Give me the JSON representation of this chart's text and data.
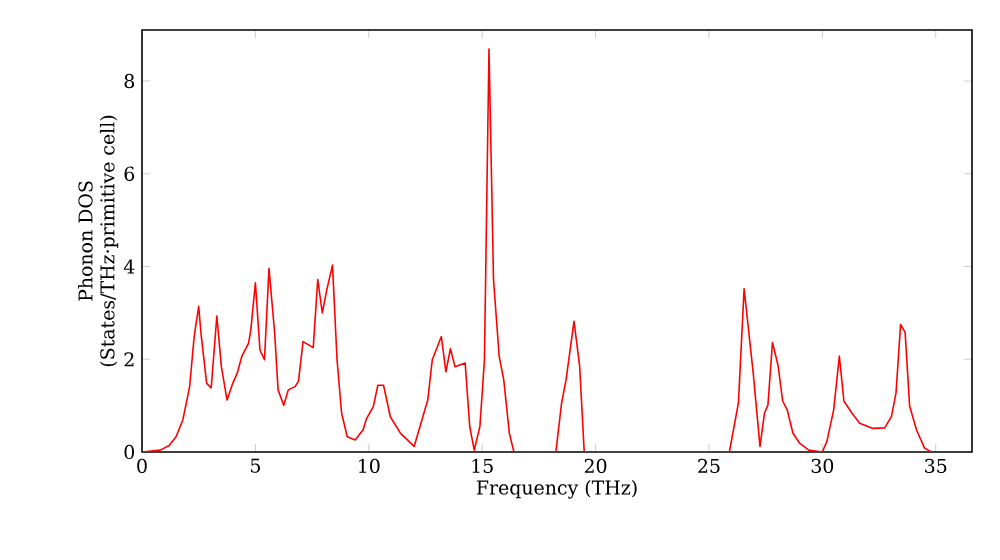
{
  "chart_data": {
    "type": "line",
    "xlabel": "Frequency (THz)",
    "ylabel": "Phonon DOS\n(States/THz·primitive cell)",
    "xlim": [
      0,
      36.6
    ],
    "ylim": [
      0,
      9.1
    ],
    "xticks": [
      0,
      5,
      10,
      15,
      20,
      25,
      30,
      35
    ],
    "yticks": [
      0,
      2,
      4,
      6,
      8
    ],
    "grid": false,
    "series": [
      {
        "color": "#ff0000",
        "x": [
          0,
          0.8,
          1.2,
          1.5,
          1.8,
          2.1,
          2.3,
          2.5,
          2.6,
          2.85,
          3.05,
          3.3,
          3.5,
          3.75,
          4.0,
          4.2,
          4.4,
          4.7,
          4.8,
          5.0,
          5.2,
          5.4,
          5.6,
          5.85,
          6.0,
          6.25,
          6.45,
          6.75,
          6.9,
          7.1,
          7.55,
          7.75,
          7.95,
          8.15,
          8.4,
          8.6,
          8.8,
          9.05,
          9.4,
          9.75,
          9.9,
          10.2,
          10.4,
          10.65,
          10.95,
          11.4,
          12.0,
          12.6,
          12.8,
          13.2,
          13.4,
          13.6,
          13.8,
          14.25,
          14.45,
          14.65,
          14.9,
          15.1,
          15.3,
          15.5,
          15.75,
          15.95,
          16.2,
          16.4,
          18.25,
          18.5,
          18.7,
          19.05,
          19.3,
          19.5,
          25.9,
          26.3,
          26.55,
          26.95,
          27.25,
          27.45,
          27.6,
          27.8,
          28.05,
          28.25,
          28.45,
          28.7,
          29.0,
          29.4,
          30.0,
          30.2,
          30.5,
          30.75,
          30.95,
          31.3,
          31.65,
          32.2,
          32.75,
          33.05,
          33.25,
          33.45,
          33.65,
          33.85,
          34.15,
          34.5,
          34.8
        ],
        "values": [
          0,
          0.04,
          0.14,
          0.33,
          0.69,
          1.41,
          2.49,
          3.14,
          2.56,
          1.48,
          1.38,
          2.93,
          1.84,
          1.12,
          1.48,
          1.7,
          2.06,
          2.35,
          2.64,
          3.65,
          2.2,
          1.99,
          3.96,
          2.56,
          1.34,
          1.01,
          1.34,
          1.41,
          1.53,
          2.38,
          2.25,
          3.72,
          3.0,
          3.5,
          4.03,
          1.99,
          0.84,
          0.33,
          0.26,
          0.48,
          0.72,
          0.98,
          1.44,
          1.44,
          0.76,
          0.4,
          0.12,
          1.12,
          1.99,
          2.49,
          1.73,
          2.23,
          1.84,
          1.92,
          0.55,
          0.04,
          0.55,
          1.99,
          8.69,
          3.72,
          2.06,
          1.56,
          0.4,
          0,
          0,
          1.05,
          1.56,
          2.82,
          1.84,
          0,
          0,
          1.06,
          3.52,
          1.71,
          0.12,
          0.84,
          1.01,
          2.36,
          1.86,
          1.1,
          0.91,
          0.41,
          0.19,
          0.04,
          0,
          0.23,
          0.91,
          2.07,
          1.1,
          0.84,
          0.62,
          0.51,
          0.52,
          0.77,
          1.28,
          2.75,
          2.58,
          0.99,
          0.48,
          0.09,
          0
        ]
      }
    ]
  }
}
